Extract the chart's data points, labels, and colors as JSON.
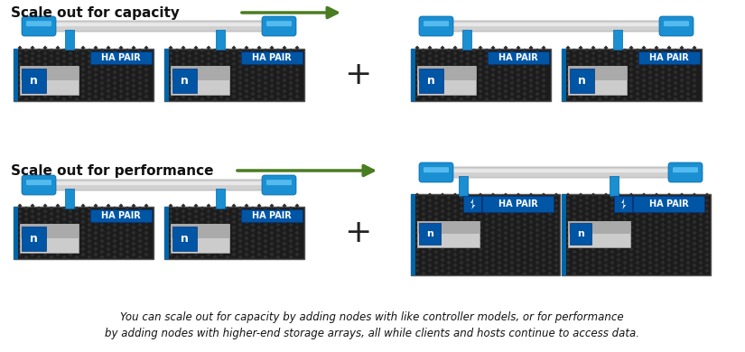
{
  "title_capacity": "Scale out for capacity",
  "title_performance": "Scale out for performance",
  "arrow_color": "#4a7c20",
  "blue_color": "#1a8fd1",
  "blue_dark": "#0066aa",
  "silver_light": "#d8d8d8",
  "silver_dark": "#b0b0b0",
  "dark_bg": "#1c1c1c",
  "dark_bg2": "#252525",
  "ha_pair_bg": "#0055a5",
  "netapp_n_bg": "#0055a5",
  "footer_text1": "You can scale out for capacity by adding nodes with like controller models, or for performance",
  "footer_text2": "by adding nodes with higher-end storage arrays, all while clients and hosts continue to access data.",
  "plus_color": "#222222",
  "white": "#ffffff",
  "text_color": "#111111",
  "dot_color": "#2e2e2e",
  "stripe_color": "#3a3a3a"
}
